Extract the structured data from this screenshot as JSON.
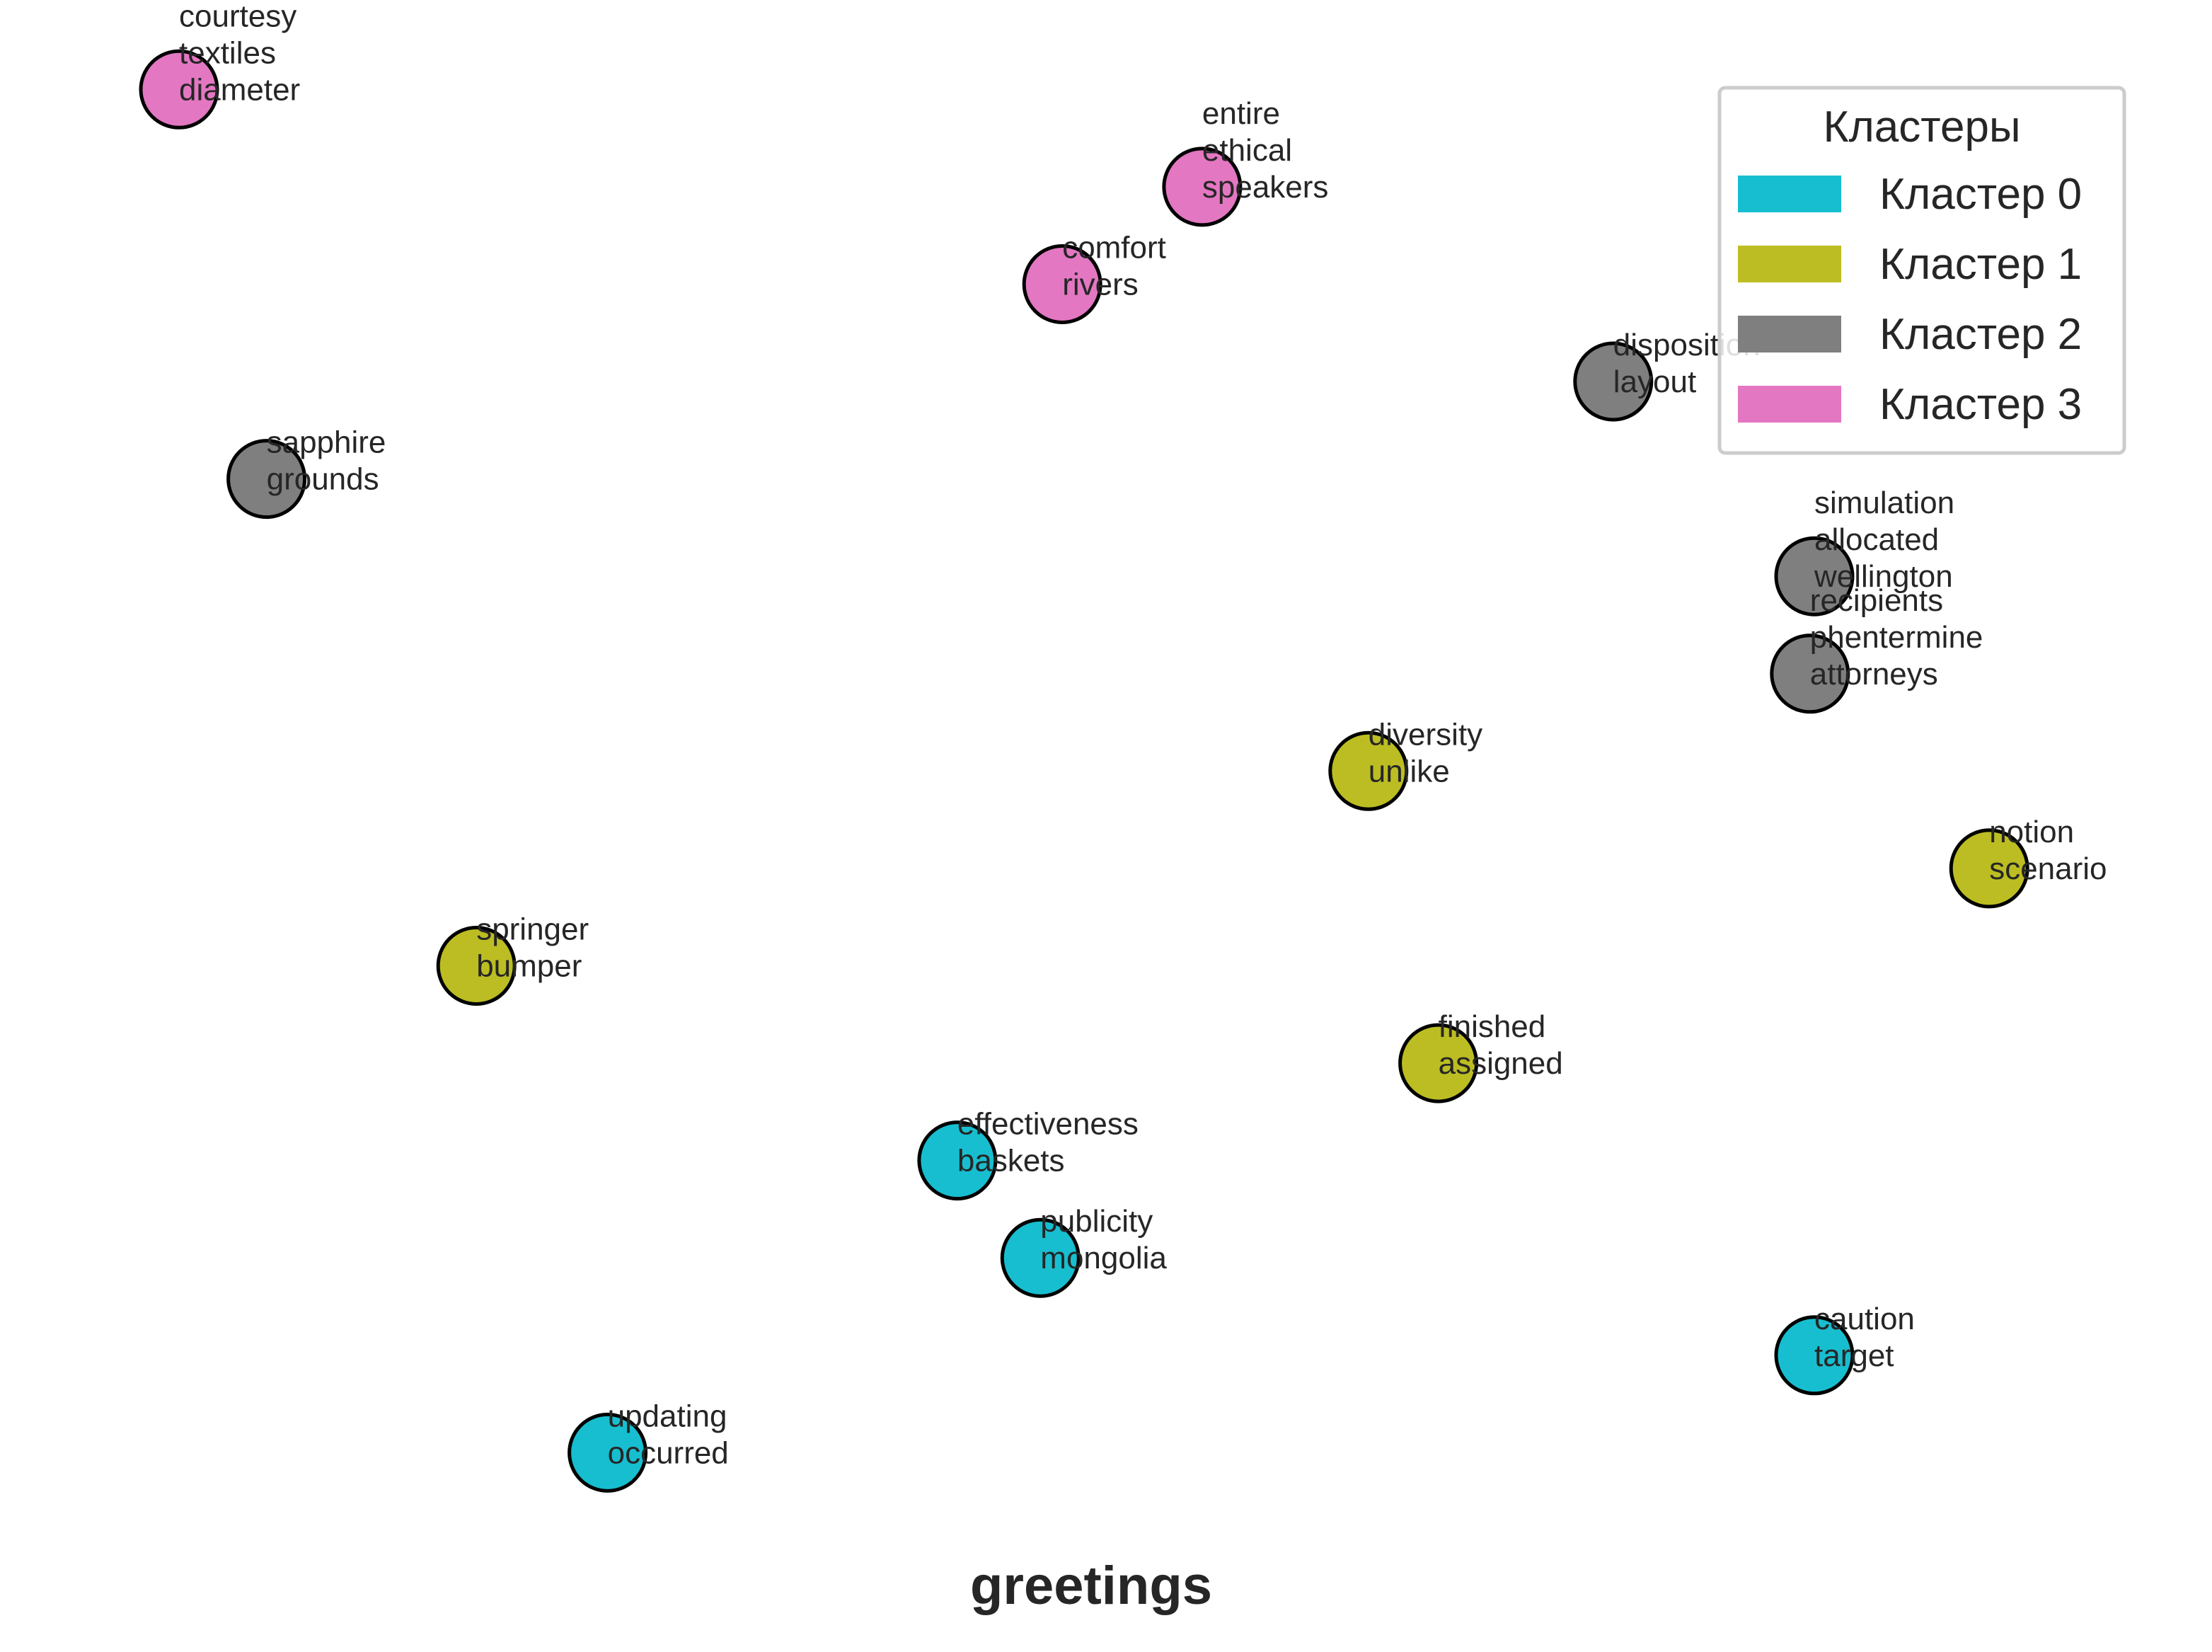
{
  "chart_data": {
    "type": "scatter",
    "title": "",
    "xlabel": "greetings",
    "ylabel": "",
    "grid": false,
    "xlim": [
      -0.5,
      23.5
    ],
    "ylim": [
      0,
      16.5
    ],
    "legend": {
      "title": "Кластеры",
      "placement": "top-right",
      "entries": [
        {
          "label": "Кластер 0",
          "color": "#17becf"
        },
        {
          "label": "Кластер 1",
          "color": "#bcbd22"
        },
        {
          "label": "Кластер 2",
          "color": "#7f7f7f"
        },
        {
          "label": "Кластер 3",
          "color": "#e377c2"
        }
      ]
    },
    "points": [
      {
        "x": 0.9,
        "y": 15.8,
        "cluster": 3,
        "labels": [
          "courtesy",
          "textiles",
          "diameter"
        ]
      },
      {
        "x": 12.6,
        "y": 14.8,
        "cluster": 3,
        "labels": [
          "entire",
          "ethical",
          "speakers"
        ]
      },
      {
        "x": 11.0,
        "y": 13.8,
        "cluster": 3,
        "labels": [
          "comfort",
          "rivers"
        ]
      },
      {
        "x": 17.3,
        "y": 12.8,
        "cluster": 2,
        "labels": [
          "disposition",
          "layout"
        ]
      },
      {
        "x": 1.9,
        "y": 11.8,
        "cluster": 2,
        "labels": [
          "sapphire",
          "grounds"
        ]
      },
      {
        "x": 19.6,
        "y": 10.8,
        "cluster": 2,
        "labels": [
          "simulation",
          "allocated",
          "wellington"
        ]
      },
      {
        "x": 19.55,
        "y": 9.8,
        "cluster": 2,
        "labels": [
          "recipients",
          "phentermine",
          "attorneys"
        ]
      },
      {
        "x": 14.5,
        "y": 8.8,
        "cluster": 1,
        "labels": [
          "diversity",
          "unlike"
        ]
      },
      {
        "x": 21.6,
        "y": 7.8,
        "cluster": 1,
        "labels": [
          "notion",
          "scenario"
        ]
      },
      {
        "x": 4.3,
        "y": 6.8,
        "cluster": 1,
        "labels": [
          "springer",
          "bumper"
        ]
      },
      {
        "x": 15.3,
        "y": 5.8,
        "cluster": 1,
        "labels": [
          "finished",
          "assigned"
        ]
      },
      {
        "x": 9.8,
        "y": 4.8,
        "cluster": 0,
        "labels": [
          "effectiveness",
          "baskets"
        ]
      },
      {
        "x": 10.75,
        "y": 3.8,
        "cluster": 0,
        "labels": [
          "publicity",
          "mongolia"
        ]
      },
      {
        "x": 19.6,
        "y": 2.8,
        "cluster": 0,
        "labels": [
          "caution",
          "target"
        ]
      },
      {
        "x": 5.8,
        "y": 1.8,
        "cluster": 0,
        "labels": [
          "updating",
          "occurred"
        ]
      }
    ]
  }
}
